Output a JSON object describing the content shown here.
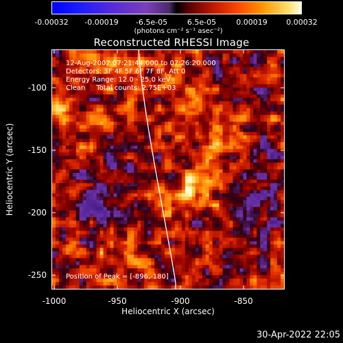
{
  "colorbar": {
    "ticks": [
      "-0.00032",
      "-0.00019",
      "-6.5e-05",
      "6.5e-05",
      "0.00019",
      "0.00032"
    ],
    "units": "(photons cm⁻² s⁻¹ asec⁻²)"
  },
  "title": "Reconstructed RHESSI Image",
  "info": {
    "line1": "12-Aug-2002 07:21:44.000 to 07:26:20.000",
    "line2": "Detectors: 3F 4F 5F 6F 7F 8F, Att 0",
    "line3": "Energy Range: 12.0 - 25.0 keV",
    "line4": "Clean     Total counts: 2.75E+03",
    "peak": "Position of Peak = [-896,-180]"
  },
  "axes": {
    "xlabel": "Heliocentric X (arcsec)",
    "ylabel": "Heliocentric Y (arcsec)",
    "xticks": [
      "-1000",
      "-950",
      "-900",
      "-850"
    ],
    "yticks": [
      "-100",
      "-150",
      "-200",
      "-250"
    ],
    "xlim": [
      -1002,
      -817
    ],
    "ylim": [
      -265,
      -73
    ]
  },
  "timestamp": "30-Apr-2022 22:05",
  "colors": {
    "background": "#000000",
    "text": "#ffffff",
    "limb_line": "#ffffff"
  }
}
